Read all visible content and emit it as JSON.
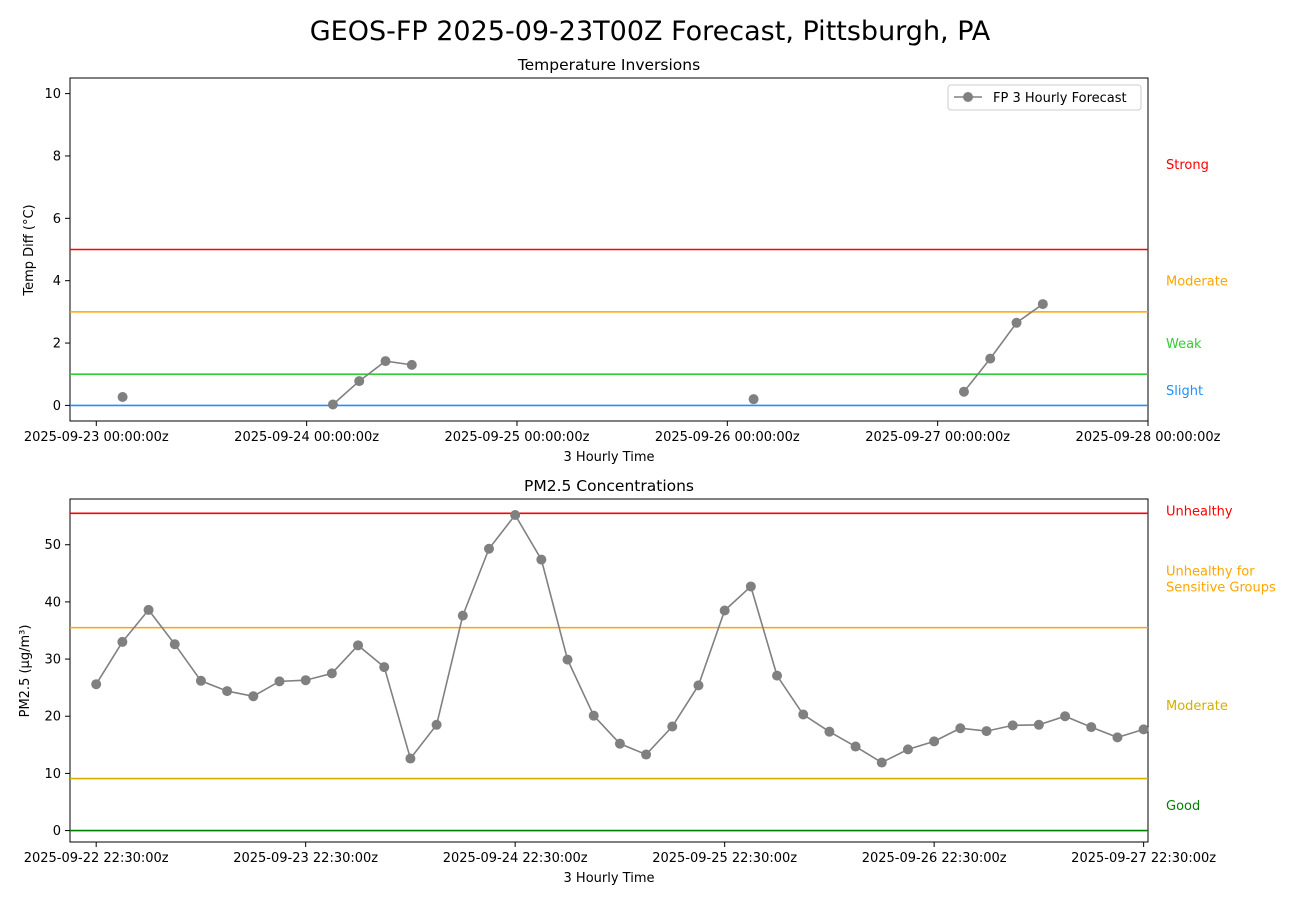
{
  "figure": {
    "title": "GEOS-FP 2025-09-23T00Z Forecast, Pittsburgh, PA"
  },
  "chart_data": [
    {
      "type": "line",
      "title": "Temperature Inversions",
      "xlabel": "3 Hourly Time",
      "ylabel": "Temp Diff (°C)",
      "ylim": [
        -0.5,
        10.5
      ],
      "yticks": [
        0,
        2,
        4,
        6,
        8,
        10
      ],
      "xlim": [
        "2025-09-22T21:00:00",
        "2025-09-28T00:00:00"
      ],
      "xticks": [
        {
          "t": "2025-09-23T00:00:00",
          "label": "2025-09-23 00:00:00z"
        },
        {
          "t": "2025-09-24T00:00:00",
          "label": "2025-09-24 00:00:00z"
        },
        {
          "t": "2025-09-25T00:00:00",
          "label": "2025-09-25 00:00:00z"
        },
        {
          "t": "2025-09-26T00:00:00",
          "label": "2025-09-26 00:00:00z"
        },
        {
          "t": "2025-09-27T00:00:00",
          "label": "2025-09-27 00:00:00z"
        },
        {
          "t": "2025-09-28T00:00:00",
          "label": "2025-09-28 00:00:00z"
        }
      ],
      "grid": false,
      "legend": {
        "position": "top-right",
        "entries": [
          "FP 3 Hourly Forecast"
        ]
      },
      "series": [
        {
          "name": "FP 3 Hourly Forecast",
          "color": "#808080",
          "points": [
            {
              "x": "2025-09-23T03:00:00",
              "y": 0.27
            },
            {
              "x": "2025-09-24T03:00:00",
              "y": 0.03
            },
            {
              "x": "2025-09-24T06:00:00",
              "y": 0.78
            },
            {
              "x": "2025-09-24T09:00:00",
              "y": 1.42
            },
            {
              "x": "2025-09-24T12:00:00",
              "y": 1.3
            },
            {
              "x": "2025-09-26T03:00:00",
              "y": 0.2
            },
            {
              "x": "2025-09-27T03:00:00",
              "y": 0.44
            },
            {
              "x": "2025-09-27T06:00:00",
              "y": 1.5
            },
            {
              "x": "2025-09-27T09:00:00",
              "y": 2.65
            },
            {
              "x": "2025-09-27T12:00:00",
              "y": 3.25
            }
          ]
        }
      ],
      "thresholds": [
        {
          "value": 5,
          "label": "Strong",
          "color": "#ff0000",
          "label_y": 7.75
        },
        {
          "value": 3,
          "label": "Moderate",
          "color": "#ffa500",
          "label_y": 4.0
        },
        {
          "value": 1,
          "label": "Weak",
          "color": "#32cd32",
          "label_y": 2.0
        },
        {
          "value": 0,
          "label": "Slight",
          "color": "#1e90ff",
          "label_y": 0.5
        }
      ]
    },
    {
      "type": "line",
      "title": "PM2.5 Concentrations",
      "xlabel": "3 Hourly Time",
      "ylabel": "PM2.5 (µg/m³)",
      "ylim": [
        -2,
        58
      ],
      "yticks": [
        0,
        10,
        20,
        30,
        40,
        50
      ],
      "xlim": [
        "2025-09-22T19:30:00",
        "2025-09-27T23:00:00"
      ],
      "xticks": [
        {
          "t": "2025-09-22T22:30:00",
          "label": "2025-09-22 22:30:00z"
        },
        {
          "t": "2025-09-23T22:30:00",
          "label": "2025-09-23 22:30:00z"
        },
        {
          "t": "2025-09-24T22:30:00",
          "label": "2025-09-24 22:30:00z"
        },
        {
          "t": "2025-09-25T22:30:00",
          "label": "2025-09-25 22:30:00z"
        },
        {
          "t": "2025-09-26T22:30:00",
          "label": "2025-09-26 22:30:00z"
        },
        {
          "t": "2025-09-27T22:30:00",
          "label": "2025-09-27 22:30:00z"
        }
      ],
      "grid": false,
      "series": [
        {
          "color": "#808080",
          "start": "2025-09-22T22:30:00",
          "step_hours": 3,
          "values": [
            25.6,
            33.0,
            38.6,
            32.6,
            26.2,
            24.4,
            23.5,
            26.1,
            26.3,
            27.5,
            32.4,
            28.6,
            12.6,
            18.5,
            37.6,
            49.3,
            55.2,
            47.4,
            29.9,
            20.1,
            15.2,
            13.3,
            18.2,
            25.4,
            38.5,
            42.7,
            27.1,
            20.3,
            17.3,
            14.7,
            11.9,
            14.2,
            15.6,
            17.9,
            17.4,
            18.4,
            18.5,
            20.0,
            18.1,
            16.3,
            17.7
          ]
        }
      ],
      "thresholds": [
        {
          "value": 55.5,
          "label": "Unhealthy",
          "color": "#ff0000",
          "label_y": 56.0
        },
        {
          "value": 35.5,
          "label": "Unhealthy for\nSensitive Groups",
          "color": "#ffa500",
          "label_y": 45.5
        },
        {
          "value": 9.1,
          "label": "Moderate",
          "color": "#d4af00",
          "label_y": 22.0
        },
        {
          "value": 0,
          "label": "Good",
          "color": "#008000",
          "label_y": 4.5
        }
      ]
    }
  ]
}
